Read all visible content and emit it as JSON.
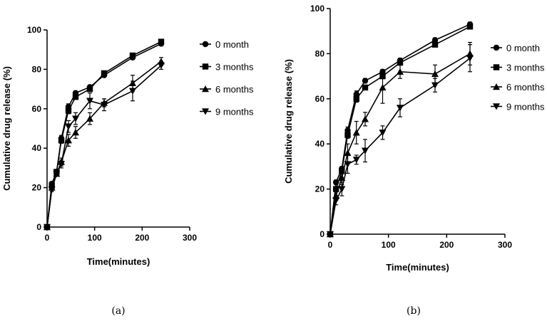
{
  "chart_data": [
    {
      "type": "line",
      "panel_label": "(a)",
      "xlabel": "Time(minutes)",
      "ylabel": "Cumulative drug release (%)",
      "xlim": [
        0,
        300
      ],
      "ylim": [
        0,
        100
      ],
      "xticks": [
        "0",
        "100",
        "200",
        "300"
      ],
      "yticks": [
        "0",
        "20",
        "40",
        "60",
        "80",
        "100"
      ],
      "grid": false,
      "legend_position": "right",
      "x": [
        0,
        10,
        20,
        30,
        45,
        60,
        90,
        120,
        180,
        240
      ],
      "series": [
        {
          "name": "0 month",
          "marker": "circle",
          "values": [
            0,
            22,
            28,
            45,
            61,
            68,
            71,
            77,
            86,
            93
          ],
          "errors": [
            0,
            1,
            1,
            1.5,
            1.5,
            1,
            1,
            1,
            1,
            1
          ]
        },
        {
          "name": "3 months",
          "marker": "square",
          "values": [
            0,
            21,
            28,
            44,
            59,
            66,
            70,
            78,
            87,
            94
          ],
          "errors": [
            0,
            1,
            1,
            1.5,
            1.5,
            1,
            1,
            1,
            1,
            1
          ]
        },
        {
          "name": "6 months",
          "marker": "triangle-up",
          "values": [
            0,
            20,
            27,
            33,
            44,
            48,
            55,
            63,
            73,
            84
          ],
          "errors": [
            0,
            1,
            1,
            2,
            3,
            3,
            3,
            2,
            4,
            2
          ]
        },
        {
          "name": "9 months",
          "marker": "triangle-down",
          "values": [
            0,
            19,
            27,
            32,
            51,
            55,
            64,
            62,
            69,
            82
          ],
          "errors": [
            0,
            1,
            1,
            2,
            3,
            3,
            4,
            3,
            5,
            2
          ]
        }
      ]
    },
    {
      "type": "line",
      "panel_label": "(b)",
      "xlabel": "Time(minutes)",
      "ylabel": "Cumulative drug release (%)",
      "xlim": [
        0,
        300
      ],
      "ylim": [
        0,
        100
      ],
      "xticks": [
        "0",
        "100",
        "200",
        "300"
      ],
      "yticks": [
        "0",
        "20",
        "40",
        "60",
        "80",
        "100"
      ],
      "grid": false,
      "legend_position": "right",
      "x": [
        0,
        10,
        20,
        30,
        45,
        60,
        90,
        120,
        180,
        240
      ],
      "series": [
        {
          "name": "0 month",
          "marker": "circle",
          "values": [
            0,
            23,
            29,
            46,
            62,
            68,
            72,
            77,
            86,
            93
          ],
          "errors": [
            0,
            1,
            1,
            1.5,
            1.5,
            1,
            1,
            1,
            1,
            1
          ]
        },
        {
          "name": "3 months",
          "marker": "square",
          "values": [
            0,
            20,
            28,
            44,
            60,
            65,
            70,
            76,
            84,
            92
          ],
          "errors": [
            0,
            1,
            1,
            1.5,
            1.5,
            1,
            1,
            1,
            1,
            1
          ]
        },
        {
          "name": "6 months",
          "marker": "triangle-up",
          "values": [
            0,
            17,
            25,
            36,
            45,
            51,
            65,
            72,
            71,
            80
          ],
          "errors": [
            0,
            2,
            3,
            4,
            5,
            3,
            7,
            3,
            4,
            5
          ]
        },
        {
          "name": "9 months",
          "marker": "triangle-down",
          "values": [
            0,
            15,
            20,
            31,
            33,
            37,
            45,
            56,
            66,
            78
          ],
          "errors": [
            0,
            2,
            3,
            4,
            2,
            5,
            3,
            4,
            3,
            6
          ]
        }
      ]
    }
  ]
}
